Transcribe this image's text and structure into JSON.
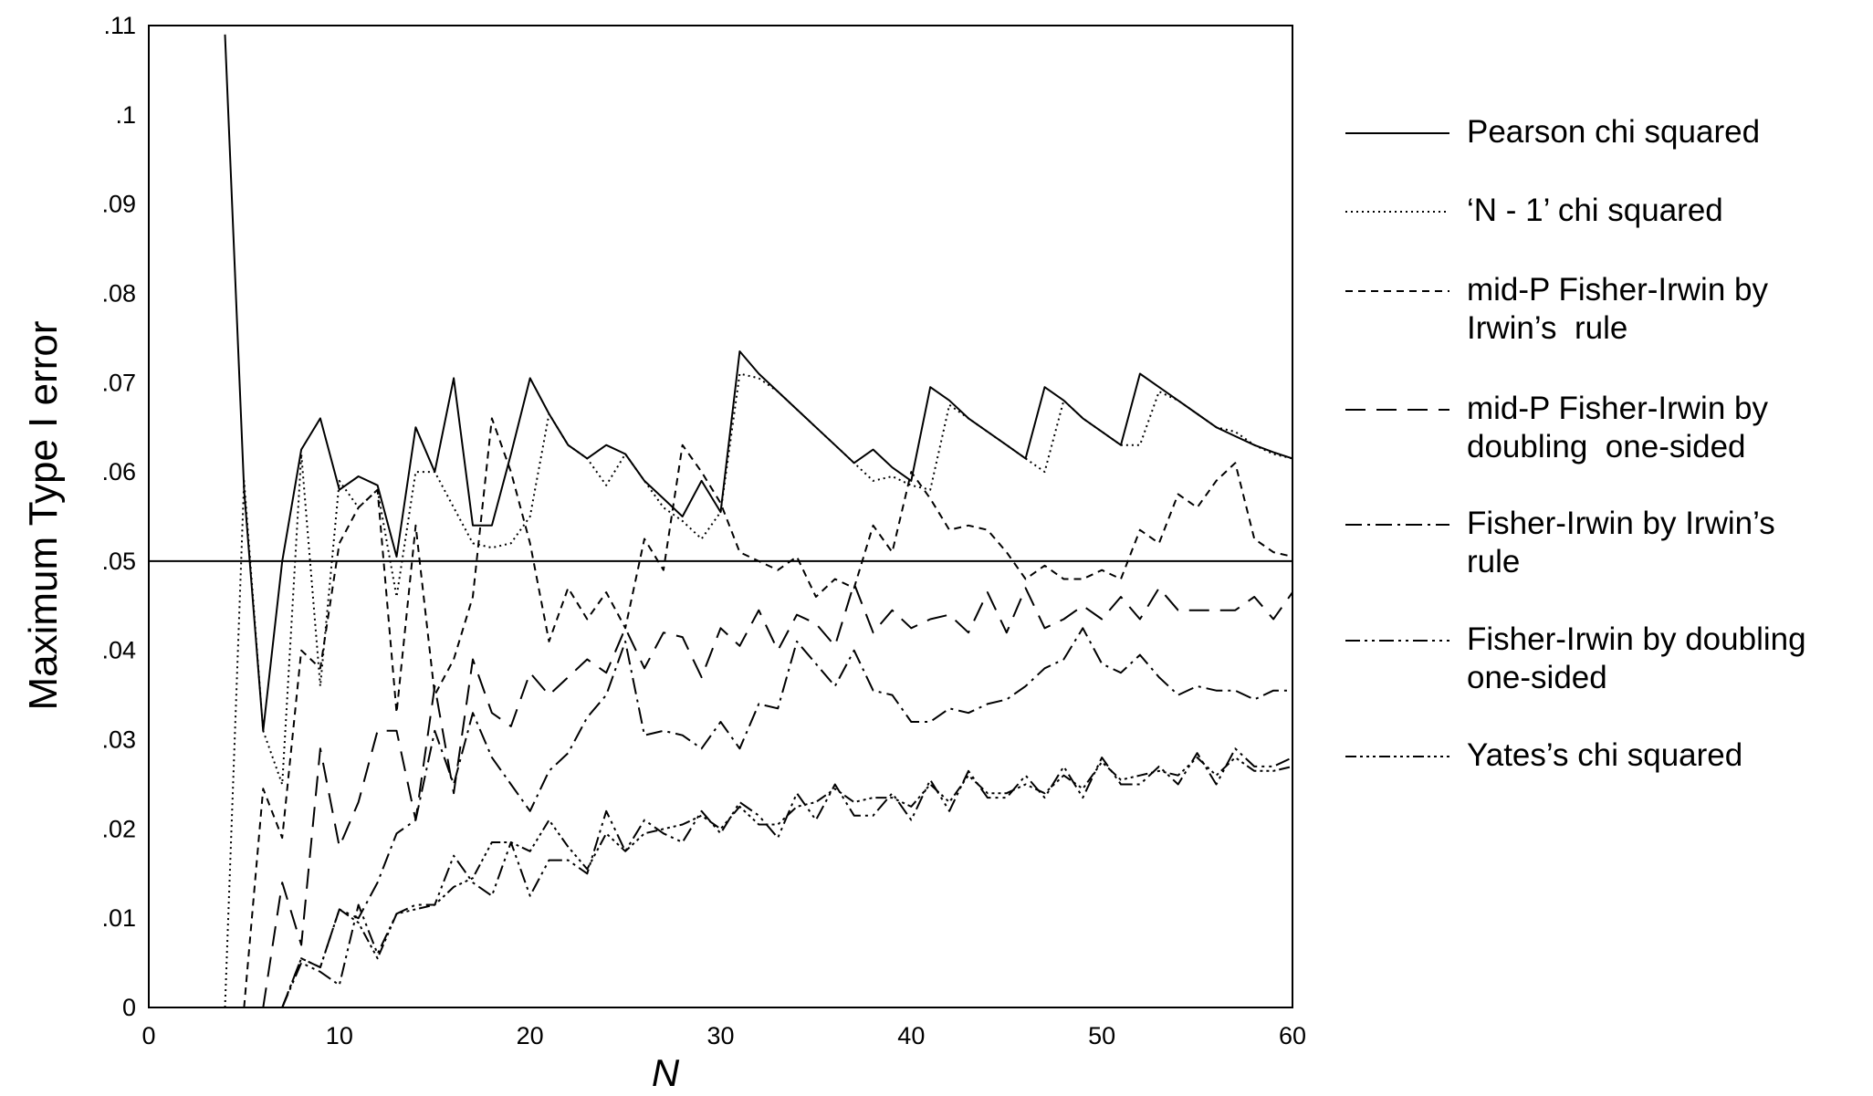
{
  "chart_data": {
    "type": "line",
    "x_label": "N",
    "y_label": "Maximum Type I error",
    "xlim": [
      0,
      60
    ],
    "ylim": [
      0,
      0.11
    ],
    "xticks": [
      0,
      10,
      20,
      30,
      40,
      50,
      60
    ],
    "yticks": [
      0,
      {
        "value": 0.01,
        "label": ".01"
      },
      {
        "value": 0.02,
        "label": ".02"
      },
      {
        "value": 0.03,
        "label": ".03"
      },
      {
        "value": 0.04,
        "label": ".04"
      },
      {
        "value": 0.05,
        "label": ".05"
      },
      {
        "value": 0.06,
        "label": ".06"
      },
      {
        "value": 0.07,
        "label": ".07"
      },
      {
        "value": 0.08,
        "label": ".08"
      },
      {
        "value": 0.09,
        "label": ".09"
      },
      {
        "value": 0.1,
        "label": ".1"
      },
      {
        "value": 0.11,
        "label": ".11"
      }
    ],
    "grid": false,
    "reference_line": 0.05,
    "x": [
      4,
      5,
      6,
      7,
      8,
      9,
      10,
      11,
      12,
      13,
      14,
      15,
      16,
      17,
      18,
      19,
      20,
      21,
      22,
      23,
      24,
      25,
      26,
      27,
      28,
      29,
      30,
      31,
      32,
      33,
      34,
      35,
      36,
      37,
      38,
      39,
      40,
      41,
      42,
      43,
      44,
      45,
      46,
      47,
      48,
      49,
      50,
      51,
      52,
      53,
      54,
      55,
      56,
      57,
      58,
      59,
      60
    ],
    "series": [
      {
        "name": "Pearson chi squared",
        "color": "#000000",
        "dash": "none",
        "values": [
          0.109,
          0.058,
          0.031,
          0.05,
          0.0625,
          0.066,
          0.058,
          0.0595,
          0.0585,
          0.0505,
          0.065,
          0.06,
          0.0705,
          0.054,
          0.054,
          0.062,
          0.0705,
          0.0665,
          0.063,
          0.0615,
          0.063,
          0.062,
          0.059,
          0.057,
          0.055,
          0.059,
          0.0555,
          0.0735,
          0.071,
          0.069,
          0.067,
          0.065,
          0.063,
          0.061,
          0.0625,
          0.0605,
          0.059,
          0.0695,
          0.068,
          0.066,
          0.0645,
          0.063,
          0.0615,
          0.0695,
          0.068,
          0.066,
          0.0645,
          0.063,
          0.071,
          0.0695,
          0.068,
          0.0665,
          0.065,
          0.064,
          0.063,
          0.0622,
          0.0615
        ]
      },
      {
        "name": "‘N - 1’ chi squared",
        "color": "#000000",
        "dash": "2 4",
        "values": [
          0,
          0.059,
          0.031,
          0.025,
          0.062,
          0.036,
          0.059,
          0.056,
          0.058,
          0.046,
          0.06,
          0.06,
          0.056,
          0.052,
          0.0515,
          0.052,
          0.055,
          0.0665,
          0.063,
          0.0615,
          0.0585,
          0.062,
          0.059,
          0.056,
          0.0545,
          0.0525,
          0.0555,
          0.071,
          0.0705,
          0.069,
          0.067,
          0.065,
          0.063,
          0.061,
          0.059,
          0.0595,
          0.0585,
          0.058,
          0.0675,
          0.066,
          0.0645,
          0.063,
          0.0615,
          0.06,
          0.068,
          0.066,
          0.0645,
          0.063,
          0.063,
          0.069,
          0.068,
          0.0665,
          0.065,
          0.0645,
          0.063,
          0.062,
          0.0615
        ]
      },
      {
        "name": "mid-P Fisher-Irwin by Irwin’s  rule",
        "color": "#000000",
        "dash": "8 6",
        "values": [
          null,
          0,
          0.0245,
          0.019,
          0.04,
          0.038,
          0.052,
          0.056,
          0.058,
          0.033,
          0.054,
          0.035,
          0.039,
          0.046,
          0.066,
          0.06,
          0.052,
          0.041,
          0.047,
          0.0435,
          0.0465,
          0.0425,
          0.0525,
          0.049,
          0.063,
          0.06,
          0.0565,
          0.051,
          0.05,
          0.049,
          0.0505,
          0.046,
          0.048,
          0.047,
          0.054,
          0.051,
          0.06,
          0.057,
          0.0535,
          0.054,
          0.0535,
          0.051,
          0.048,
          0.0495,
          0.048,
          0.048,
          0.049,
          0.048,
          0.0535,
          0.052,
          0.0575,
          0.056,
          0.059,
          0.061,
          0.0525,
          0.051,
          0.0505
        ]
      },
      {
        "name": "mid-P Fisher-Irwin by doubling  one-sided",
        "color": "#000000",
        "dash": "22 12",
        "values": [
          null,
          null,
          0,
          0.014,
          0.007,
          0.029,
          0.018,
          0.023,
          0.031,
          0.031,
          0.021,
          0.036,
          0.024,
          0.039,
          0.033,
          0.0315,
          0.0375,
          0.035,
          0.037,
          0.039,
          0.0375,
          0.0425,
          0.038,
          0.042,
          0.0415,
          0.037,
          0.0425,
          0.0405,
          0.0445,
          0.04,
          0.044,
          0.043,
          0.0405,
          0.0475,
          0.042,
          0.0445,
          0.0425,
          0.0435,
          0.044,
          0.042,
          0.0465,
          0.042,
          0.047,
          0.0425,
          0.0435,
          0.045,
          0.0435,
          0.046,
          0.0435,
          0.047,
          0.0445,
          0.0445,
          0.0445,
          0.0445,
          0.046,
          0.0435,
          0.0465
        ]
      },
      {
        "name": "Fisher-Irwin by Irwin’s rule",
        "color": "#000000",
        "dash": "18 6 3 6",
        "values": [
          null,
          null,
          null,
          0,
          0.0055,
          0.0045,
          0.011,
          0.01,
          0.014,
          0.0195,
          0.021,
          0.031,
          0.025,
          0.033,
          0.028,
          0.025,
          0.022,
          0.0265,
          0.0285,
          0.0325,
          0.035,
          0.041,
          0.0305,
          0.031,
          0.0305,
          0.029,
          0.032,
          0.029,
          0.034,
          0.0335,
          0.041,
          0.0385,
          0.036,
          0.04,
          0.0355,
          0.035,
          0.032,
          0.032,
          0.0335,
          0.033,
          0.034,
          0.0345,
          0.036,
          0.038,
          0.039,
          0.0425,
          0.0385,
          0.0375,
          0.0395,
          0.037,
          0.035,
          0.036,
          0.0355,
          0.0355,
          0.0345,
          0.0355,
          0.0355
        ]
      },
      {
        "name": "Fisher-Irwin by doubling one-sided",
        "color": "#000000",
        "dash": "16 5 3 5 3 5",
        "values": [
          null,
          null,
          null,
          0,
          0.005,
          0.004,
          0.0025,
          0.0115,
          0.006,
          0.0105,
          0.0115,
          0.0115,
          0.017,
          0.014,
          0.0125,
          0.0185,
          0.0125,
          0.0165,
          0.0165,
          0.015,
          0.022,
          0.0175,
          0.021,
          0.0195,
          0.0185,
          0.022,
          0.0195,
          0.023,
          0.0215,
          0.019,
          0.024,
          0.021,
          0.025,
          0.0215,
          0.0215,
          0.024,
          0.021,
          0.0255,
          0.022,
          0.0265,
          0.0235,
          0.0235,
          0.026,
          0.0235,
          0.027,
          0.0235,
          0.028,
          0.025,
          0.025,
          0.027,
          0.025,
          0.0285,
          0.025,
          0.029,
          0.027,
          0.027,
          0.028
        ]
      },
      {
        "name": "Yates’s chi squared",
        "color": "#000000",
        "dash": "12 4 3 4 3 4 3 4",
        "values": [
          null,
          null,
          null,
          0,
          0.0055,
          0.0045,
          0.011,
          0.0095,
          0.0055,
          0.0105,
          0.011,
          0.0115,
          0.0135,
          0.0145,
          0.0185,
          0.0185,
          0.0175,
          0.021,
          0.018,
          0.0155,
          0.0195,
          0.0175,
          0.0195,
          0.02,
          0.0205,
          0.0215,
          0.02,
          0.0225,
          0.0205,
          0.0205,
          0.0225,
          0.023,
          0.0245,
          0.023,
          0.0235,
          0.0235,
          0.0225,
          0.025,
          0.023,
          0.026,
          0.024,
          0.024,
          0.025,
          0.024,
          0.026,
          0.0245,
          0.0275,
          0.0255,
          0.026,
          0.0265,
          0.026,
          0.028,
          0.026,
          0.028,
          0.0265,
          0.0265,
          0.027
        ]
      }
    ]
  }
}
